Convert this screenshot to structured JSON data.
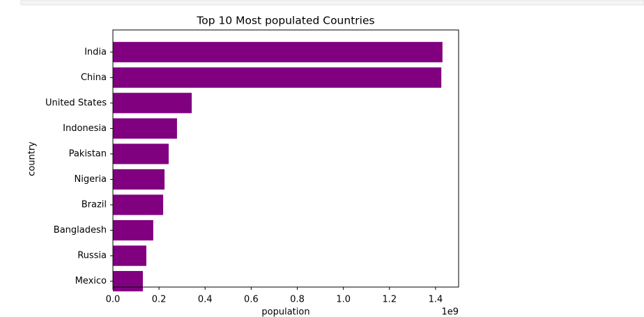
{
  "chart_data": {
    "type": "barh",
    "title": "Top 10 Most populated Countries",
    "xlabel": "population",
    "ylabel": "country",
    "offset_text": "1e9",
    "categories": [
      "India",
      "China",
      "United States",
      "Indonesia",
      "Pakistan",
      "Nigeria",
      "Brazil",
      "Bangladesh",
      "Russia",
      "Mexico"
    ],
    "values": [
      1430000000,
      1425000000,
      342000000,
      278000000,
      242000000,
      224000000,
      218000000,
      175000000,
      145000000,
      130000000
    ],
    "color": "#800080",
    "xlim": [
      0,
      1500000000
    ],
    "xticks": [
      {
        "value": 0,
        "label": "0.0"
      },
      {
        "value": 200000000,
        "label": "0.2"
      },
      {
        "value": 400000000,
        "label": "0.4"
      },
      {
        "value": 600000000,
        "label": "0.6"
      },
      {
        "value": 800000000,
        "label": "0.8"
      },
      {
        "value": 1000000000,
        "label": "1.0"
      },
      {
        "value": 1200000000,
        "label": "1.2"
      },
      {
        "value": 1400000000,
        "label": "1.4"
      }
    ]
  }
}
